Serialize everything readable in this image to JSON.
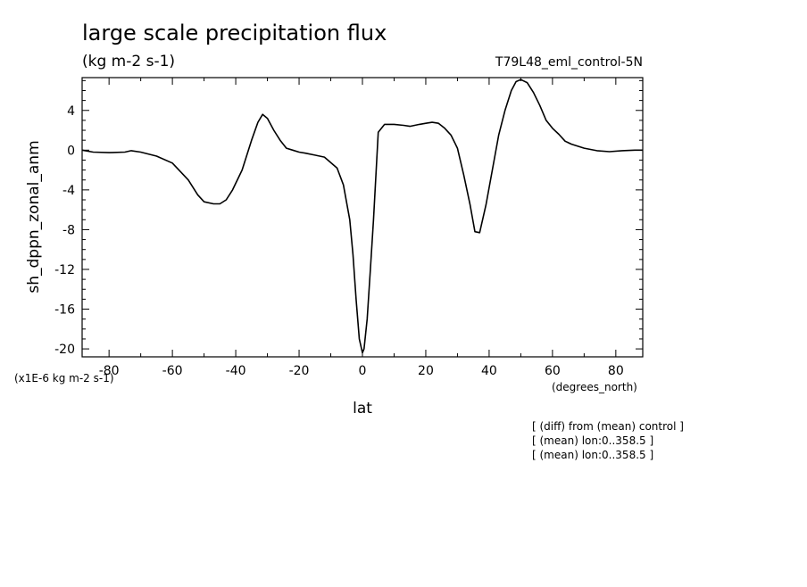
{
  "title": "large scale precipitation flux",
  "units": "(kg m-2 s-1)",
  "run_label": "T79L48_eml_control-5N",
  "multiplier_label": "(x1E-6 kg m-2 s-1)",
  "xunit_label": "(degrees_north)",
  "notes": [
    "[ (diff) from (mean) control ]",
    "[ (mean) lon:0..358.5 ]",
    "[ (mean) lon:0..358.5 ]"
  ],
  "chart_data": {
    "type": "line",
    "title": "large scale precipitation flux",
    "xlabel": "lat",
    "ylabel": "sh_dppn_zonal_anm",
    "xlim": [
      -88.5,
      88.5
    ],
    "ylim": [
      -20.8,
      7.3
    ],
    "xticks": [
      -80,
      -60,
      -40,
      -20,
      0,
      20,
      40,
      60,
      80
    ],
    "yticks": [
      -20,
      -16,
      -12,
      -8,
      -4,
      0,
      4
    ],
    "grid": false,
    "series": [
      {
        "x": [
          -88.5,
          -85,
          -80,
          -75,
          -73,
          -70,
          -65,
          -60,
          -55,
          -52,
          -50,
          -47,
          -45,
          -43,
          -41,
          -38,
          -35,
          -33,
          -31.5,
          -30,
          -28,
          -26,
          -24,
          -22,
          -20,
          -18,
          -15,
          -12,
          -8,
          -6,
          -4,
          -3,
          -2,
          -1,
          0,
          0.5,
          1.5,
          2.5,
          3.5,
          5,
          7,
          10,
          13,
          15,
          18,
          20,
          22,
          24,
          26,
          28,
          30,
          32,
          34,
          35.5,
          37,
          39,
          41,
          43,
          45,
          47,
          48.5,
          50,
          52,
          54,
          56,
          58,
          60,
          62,
          64,
          66,
          68,
          70,
          74,
          78,
          82,
          86,
          88.5
        ],
        "y": [
          0.0,
          -0.2,
          -0.25,
          -0.2,
          -0.05,
          -0.2,
          -0.6,
          -1.3,
          -3.0,
          -4.5,
          -5.2,
          -5.4,
          -5.4,
          -5.0,
          -4.0,
          -2.0,
          1.0,
          2.8,
          3.6,
          3.2,
          2.0,
          1.0,
          0.2,
          0.0,
          -0.2,
          -0.3,
          -0.5,
          -0.7,
          -1.8,
          -3.5,
          -7.0,
          -10.5,
          -15.0,
          -19.0,
          -20.4,
          -20.0,
          -17.0,
          -12.0,
          -7.0,
          1.8,
          2.6,
          2.6,
          2.5,
          2.4,
          2.6,
          2.7,
          2.8,
          2.7,
          2.2,
          1.5,
          0.2,
          -2.5,
          -5.5,
          -8.2,
          -8.3,
          -5.5,
          -2.0,
          1.5,
          4.0,
          6.0,
          6.9,
          7.1,
          6.8,
          5.8,
          4.5,
          3.0,
          2.2,
          1.6,
          0.9,
          0.6,
          0.4,
          0.2,
          -0.05,
          -0.15,
          -0.05,
          0.0,
          0.0
        ]
      }
    ]
  }
}
